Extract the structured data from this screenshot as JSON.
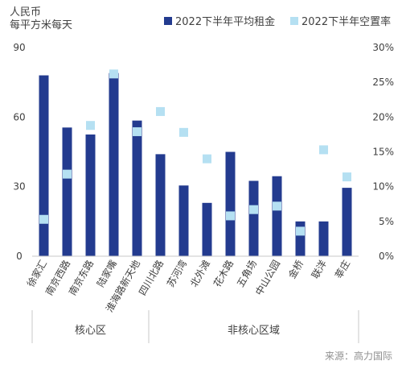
{
  "chart_data": {
    "type": "bar",
    "y_unit_label": [
      "人民币",
      "每平方米每天"
    ],
    "categories": [
      "徐家汇",
      "南京西路",
      "南京东路",
      "陆家嘴",
      "淮海路新天地",
      "四川北路",
      "苏河湾",
      "北外滩",
      "花木路",
      "五角场",
      "中山公园",
      "金桥",
      "联洋",
      "莘庄"
    ],
    "series": [
      {
        "name": "2022下半年平均租金",
        "kind": "bar",
        "axis": "left",
        "color": "#233b8f",
        "values": [
          78,
          55.5,
          52.5,
          79,
          58.5,
          44,
          30.5,
          23,
          45,
          32.5,
          34.5,
          15,
          15,
          29.5
        ]
      },
      {
        "name": "2022下半年空置率",
        "kind": "marker",
        "axis": "right",
        "color": "#b5e0f2",
        "values": [
          5.3,
          11.8,
          18.8,
          26.2,
          17.9,
          20.8,
          17.8,
          14,
          5.8,
          6.7,
          7.2,
          3.6,
          15.3,
          11.4
        ]
      }
    ],
    "y_left": {
      "min": 0,
      "max": 90,
      "ticks": [
        0,
        30,
        60,
        90
      ]
    },
    "y_right": {
      "min": 0,
      "max": 30,
      "ticks": [
        "0%",
        "5%",
        "10%",
        "15%",
        "20%",
        "25%",
        "30%"
      ]
    },
    "groups": [
      {
        "label": "核心区",
        "count": 5
      },
      {
        "label": "非核心区域",
        "count": 9
      }
    ],
    "legend_position": "top-right",
    "source": "来源：高力国际"
  }
}
